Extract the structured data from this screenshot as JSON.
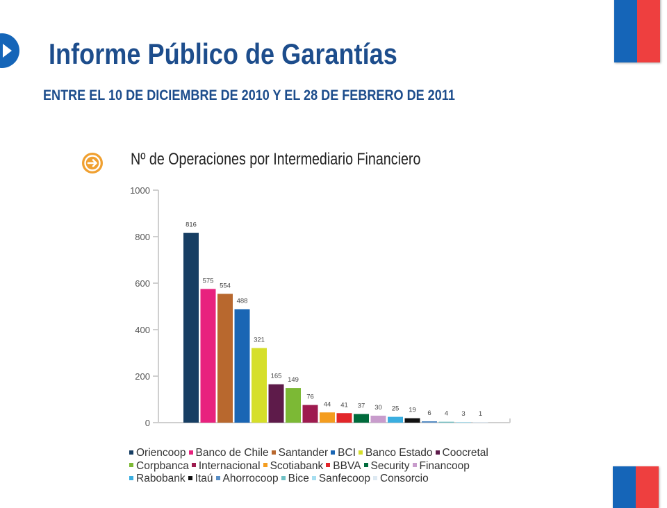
{
  "header": {
    "title": "Informe Público de Garantías",
    "subtitle": "ENTRE EL 10 DE DICIEMBRE DE 2010 Y EL 28 DE FEBRERO DE 2011"
  },
  "chart_heading": "Nº de Operaciones por Intermediario Financiero",
  "chart_data": {
    "type": "bar",
    "title": "Nº de Operaciones por Intermediario Financiero",
    "xlabel": "",
    "ylabel": "",
    "ylim": [
      0,
      1000
    ],
    "yticks": [
      "0",
      "200",
      "400",
      "600",
      "800",
      "1000"
    ],
    "grid": false,
    "legend_position": "bottom",
    "categories": [
      "Oriencoop",
      "Banco de Chile",
      "Santander",
      "BCI",
      "Banco Estado",
      "Coocretal",
      "Corpbanca",
      "Internacional",
      "Scotiabank",
      "BBVA",
      "Security",
      "Financoop",
      "Rabobank",
      "Itaú",
      "Ahorrocoop",
      "Bice",
      "Sanfecoop",
      "Consorcio"
    ],
    "values": [
      816,
      575,
      554,
      488,
      321,
      165,
      149,
      76,
      44,
      41,
      37,
      30,
      25,
      19,
      6,
      4,
      3,
      1
    ],
    "value_labels": [
      "816",
      "575",
      "554",
      "488",
      "321",
      "165",
      "149",
      "76",
      "44",
      "41",
      "37",
      "30",
      "25",
      "19",
      "6",
      "4",
      "3",
      "1"
    ],
    "colors": [
      "#173e63",
      "#e8227e",
      "#b8682e",
      "#1a66b4",
      "#d6df2a",
      "#5e1b4a",
      "#7cb935",
      "#9e1b4f",
      "#f49d1f",
      "#e2262a",
      "#006b3c",
      "#c89ccc",
      "#3aaee0",
      "#111111",
      "#5a8fc6",
      "#6ec0c4",
      "#a6def0",
      "#dde9f2"
    ]
  },
  "legend": {
    "rows": [
      [
        "Oriencoop",
        "Banco de Chile",
        "Santander",
        "BCI",
        "Banco Estado",
        "Coocretal"
      ],
      [
        "Corpbanca",
        "Internacional",
        "Scotiabank",
        "BBVA",
        "Security",
        "Financoop"
      ],
      [
        "Rabobank",
        "Itaú",
        "Ahorrocoop",
        "Bice",
        "Sanfecoop",
        "Consorcio"
      ]
    ]
  },
  "icons": {
    "header_icon": "play-icon",
    "chart_icon": "arrow-right-circle-icon"
  }
}
